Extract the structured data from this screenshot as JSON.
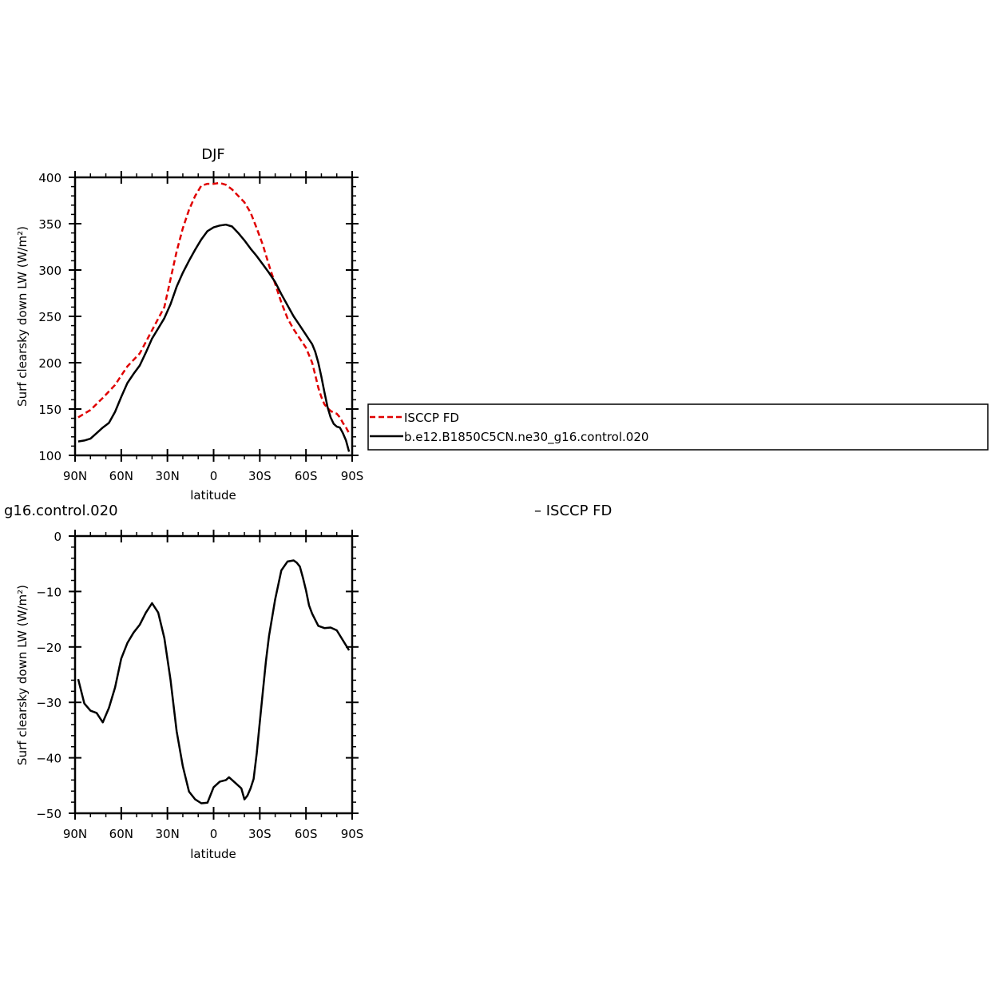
{
  "chart_data": [
    {
      "type": "line",
      "title": "DJF",
      "xlabel": "latitude",
      "ylabel": "Surf clearsky down LW (W/m²)",
      "x_tick_labels": [
        "90N",
        "60N",
        "30N",
        "0",
        "30S",
        "60S",
        "90S"
      ],
      "x_ticks": [
        90,
        60,
        30,
        0,
        -30,
        -60,
        -90
      ],
      "xlim": [
        90,
        -90
      ],
      "ylim": [
        100,
        400
      ],
      "y_ticks": [
        100,
        150,
        200,
        250,
        300,
        350,
        400
      ],
      "grid": false,
      "legend_position": "right",
      "series": [
        {
          "name": "ISCCP FD",
          "color": "#e00000",
          "style": "dashed",
          "x": [
            88,
            80,
            72,
            64,
            56,
            48,
            40,
            32,
            28,
            24,
            20,
            16,
            12,
            8,
            4,
            0,
            -4,
            -8,
            -12,
            -16,
            -20,
            -24,
            -28,
            -32,
            -36,
            -40,
            -44,
            -48,
            -52,
            -56,
            -60,
            -64,
            -66,
            -68,
            -70,
            -72,
            -74,
            -76,
            -78,
            -80,
            -82,
            -84,
            -86,
            -88
          ],
          "y": [
            141,
            149,
            162,
            176,
            196,
            210,
            235,
            260,
            290,
            320,
            345,
            365,
            380,
            391,
            393,
            393,
            394,
            392,
            387,
            380,
            373,
            362,
            345,
            327,
            305,
            285,
            265,
            248,
            236,
            226,
            216,
            200,
            187,
            173,
            163,
            155,
            151,
            148,
            146,
            145,
            141,
            135,
            130,
            124
          ]
        },
        {
          "name": "b.e12.B1850C5CN.ne30_g16.control.020",
          "color": "#000000",
          "style": "solid",
          "x": [
            88,
            84,
            80,
            76,
            72,
            68,
            64,
            60,
            56,
            52,
            48,
            44,
            40,
            36,
            32,
            28,
            24,
            20,
            16,
            12,
            8,
            4,
            0,
            -4,
            -8,
            -12,
            -16,
            -20,
            -24,
            -28,
            -32,
            -36,
            -40,
            -44,
            -48,
            -52,
            -56,
            -60,
            -62,
            -64,
            -66,
            -68,
            -70,
            -72,
            -74,
            -76,
            -78,
            -80,
            -82,
            -84,
            -86,
            -88
          ],
          "y": [
            115,
            116,
            118,
            124,
            130,
            135,
            147,
            163,
            178,
            188,
            197,
            211,
            226,
            237,
            248,
            263,
            282,
            297,
            310,
            322,
            333,
            342,
            346,
            348,
            349,
            347,
            340,
            332,
            323,
            315,
            306,
            297,
            287,
            274,
            262,
            250,
            240,
            230,
            225,
            220,
            212,
            200,
            185,
            168,
            152,
            141,
            134,
            131,
            130,
            124,
            116,
            104
          ]
        }
      ]
    },
    {
      "type": "line",
      "title": "g16.control.020",
      "subtitle": "– ISCCP FD",
      "xlabel": "latitude",
      "ylabel": "Surf clearsky down LW (W/m²)",
      "x_tick_labels": [
        "90N",
        "60N",
        "30N",
        "0",
        "30S",
        "60S",
        "90S"
      ],
      "x_ticks": [
        90,
        60,
        30,
        0,
        -30,
        -60,
        -90
      ],
      "xlim": [
        90,
        -90
      ],
      "ylim": [
        -50,
        0
      ],
      "y_ticks": [
        -50,
        -40,
        -30,
        -20,
        -10,
        0
      ],
      "grid": false,
      "series": [
        {
          "color": "#000000",
          "style": "solid",
          "x": [
            88,
            84,
            80,
            76,
            72,
            68,
            64,
            60,
            56,
            52,
            48,
            44,
            40,
            36,
            32,
            28,
            24,
            20,
            16,
            12,
            8,
            4,
            0,
            -4,
            -8,
            -10,
            -14,
            -18,
            -20,
            -22,
            -24,
            -26,
            -28,
            -30,
            -32,
            -34,
            -36,
            -40,
            -44,
            -48,
            -52,
            -54,
            -56,
            -58,
            -60,
            -62,
            -64,
            -68,
            -72,
            -76,
            -80,
            -84,
            -88
          ],
          "y": [
            -25.8,
            -30.2,
            -31.5,
            -31.9,
            -33.6,
            -31.0,
            -27.3,
            -22.1,
            -19.3,
            -17.4,
            -16.0,
            -13.8,
            -12.1,
            -13.8,
            -18.4,
            -25.9,
            -35.2,
            -41.5,
            -46.1,
            -47.5,
            -48.2,
            -48.1,
            -45.3,
            -44.3,
            -44.0,
            -43.5,
            -44.5,
            -45.5,
            -47.5,
            -46.8,
            -45.5,
            -43.8,
            -39.2,
            -33.6,
            -28.0,
            -22.6,
            -18.0,
            -11.4,
            -6.2,
            -4.6,
            -4.4,
            -4.8,
            -5.5,
            -7.5,
            -9.8,
            -12.5,
            -14.0,
            -16.2,
            -16.6,
            -16.5,
            -17.0,
            -18.8,
            -20.6
          ]
        }
      ]
    }
  ],
  "legend": {
    "entries": [
      {
        "label": "ISCCP FD",
        "color": "#e00000",
        "style": "dashed"
      },
      {
        "label": "b.e12.B1850C5CN.ne30_g16.control.020",
        "color": "#000000",
        "style": "solid"
      }
    ]
  }
}
